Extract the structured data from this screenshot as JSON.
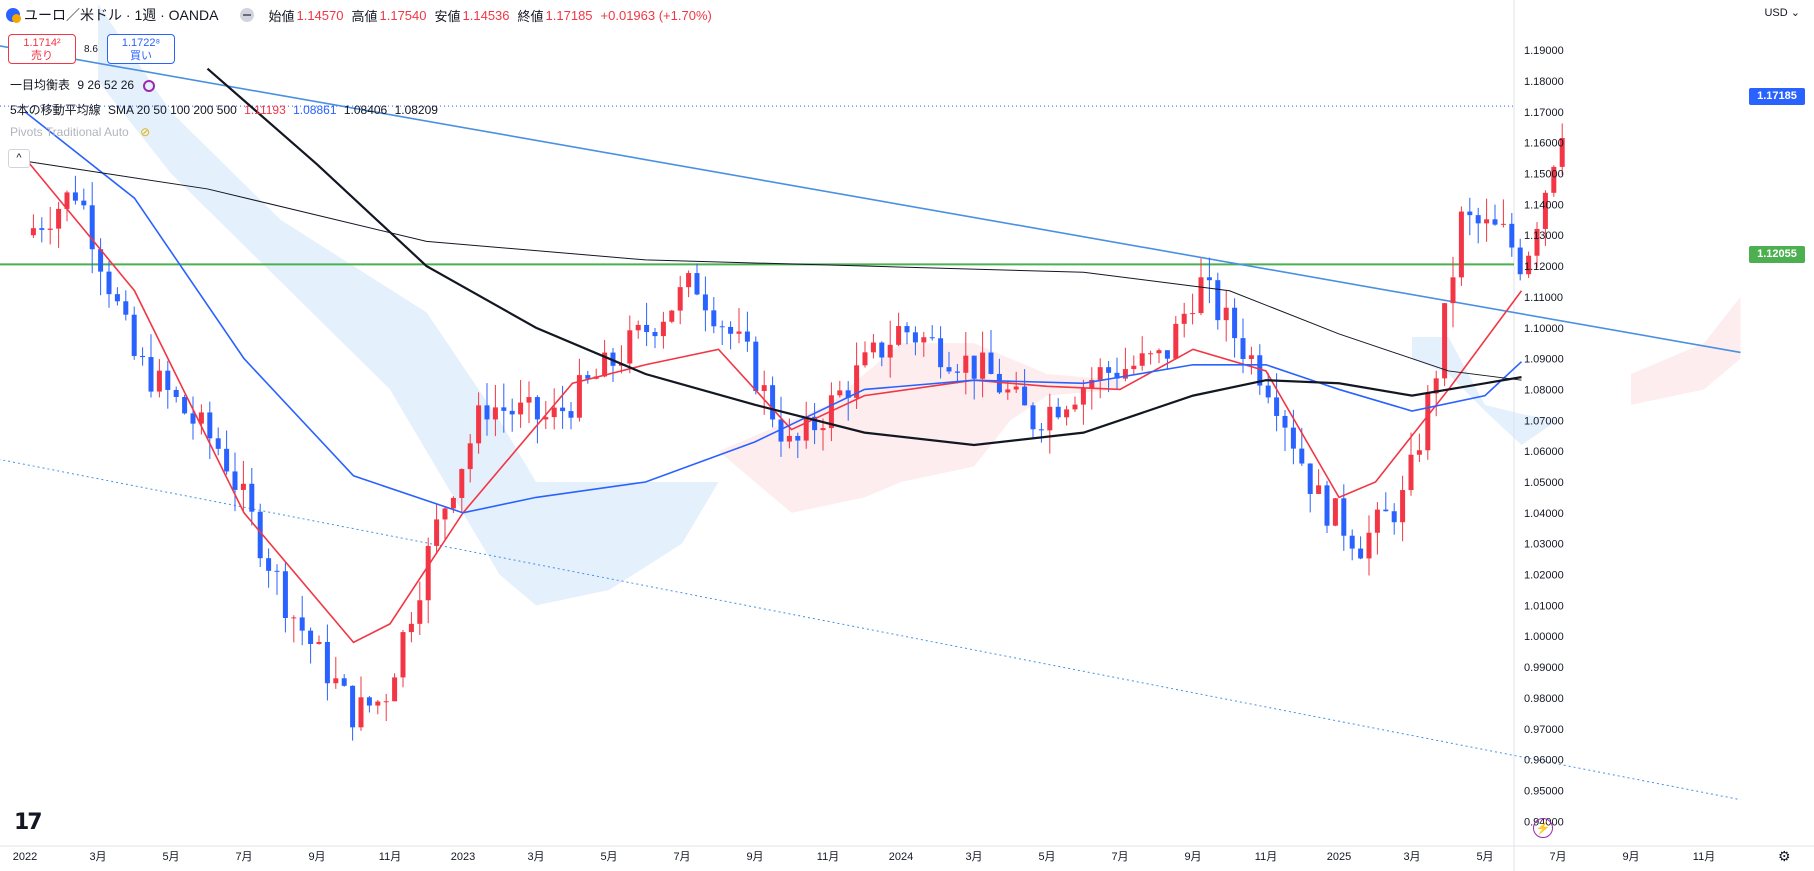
{
  "header": {
    "symbol": "ユーロ／米ドル · 1週 · OANDA",
    "open_label": "始値",
    "open": "1.14570",
    "high_label": "高値",
    "high": "1.17540",
    "low_label": "安値",
    "low": "1.14536",
    "close_label": "終値",
    "close": "1.17185",
    "change": "+0.01963 (+1.70%)"
  },
  "quote": {
    "sell_price": "1.1714²",
    "sell_label": "売り",
    "spread": "8.6",
    "buy_price": "1.1722⁸",
    "buy_label": "買い"
  },
  "indicators": {
    "ichimoku": {
      "name": "一目均衡表",
      "params": "9 26 52 26"
    },
    "sma": {
      "name": "5本の移動平均線",
      "params": "SMA 20 50 100 200 500",
      "v1": "1.11193",
      "v2": "1.08861",
      "v3": "1.08406",
      "v4": "1.08209"
    },
    "pivots": {
      "name": "Pivots Traditional Auto"
    }
  },
  "collapse_label": "^",
  "currency": "USD",
  "price_axis_labels": [
    "1.19000",
    "1.18000",
    "1.17000",
    "1.16000",
    "1.15000",
    "1.14000",
    "1.13000",
    "1.12000",
    "1.11000",
    "1.10000",
    "1.09000",
    "1.08000",
    "1.07000",
    "1.06000",
    "1.05000",
    "1.04000",
    "1.03000",
    "1.02000",
    "1.01000",
    "1.00000",
    "0.99000",
    "0.98000",
    "0.97000",
    "0.96000",
    "0.95000",
    "0.94000"
  ],
  "last_price_tag": "1.17185",
  "level_tag": "1.12055",
  "colors": {
    "up": "#f23645",
    "down": "#2962ff",
    "level": "#4caf50",
    "trend": "#4a90e2"
  },
  "chart_data": {
    "type": "candlestick",
    "title": "ユーロ／米ドル · 1週 · OANDA",
    "x_tick_labels": [
      "2022",
      "3月",
      "5月",
      "7月",
      "9月",
      "11月",
      "2023",
      "3月",
      "5月",
      "7月",
      "9月",
      "11月",
      "2024",
      "3月",
      "5月",
      "7月",
      "9月",
      "11月",
      "2025",
      "3月",
      "5月",
      "7月",
      "9月",
      "11月"
    ],
    "ylim": [
      0.9375,
      1.1975
    ],
    "horizontal_level": 1.12055,
    "last_price": 1.17185,
    "trendlines": [
      {
        "style": "solid",
        "from": [
          "2021-12",
          1.192
        ],
        "to": [
          "2025-12",
          1.092
        ]
      },
      {
        "style": "dotted",
        "from": [
          "2021-12",
          1.058
        ],
        "to": [
          "2025-12",
          0.947
        ]
      }
    ],
    "series": [
      {
        "name": "SMA 20",
        "color": "#f23645",
        "points": [
          [
            "2022-01",
            1.155
          ],
          [
            "2022-04",
            1.112
          ],
          [
            "2022-07",
            1.04
          ],
          [
            "2022-10",
            0.998
          ],
          [
            "2022-11",
            1.004
          ],
          [
            "2023-01",
            1.04
          ],
          [
            "2023-04",
            1.082
          ],
          [
            "2023-06",
            1.088
          ],
          [
            "2023-08",
            1.093
          ],
          [
            "2023-10",
            1.067
          ],
          [
            "2023-12",
            1.078
          ],
          [
            "2024-03",
            1.083
          ],
          [
            "2024-05",
            1.081
          ],
          [
            "2024-07",
            1.08
          ],
          [
            "2024-09",
            1.093
          ],
          [
            "2024-11",
            1.086
          ],
          [
            "2025-01",
            1.045
          ],
          [
            "2025-02",
            1.05
          ],
          [
            "2025-04",
            1.08
          ],
          [
            "2025-06",
            1.112
          ]
        ]
      },
      {
        "name": "SMA 50",
        "color": "#2962ff",
        "points": [
          [
            "2022-01",
            1.17
          ],
          [
            "2022-04",
            1.142
          ],
          [
            "2022-07",
            1.09
          ],
          [
            "2022-10",
            1.052
          ],
          [
            "2023-01",
            1.04
          ],
          [
            "2023-03",
            1.045
          ],
          [
            "2023-06",
            1.05
          ],
          [
            "2023-09",
            1.063
          ],
          [
            "2023-12",
            1.08
          ],
          [
            "2024-03",
            1.083
          ],
          [
            "2024-06",
            1.082
          ],
          [
            "2024-09",
            1.088
          ],
          [
            "2024-11",
            1.088
          ],
          [
            "2025-01",
            1.08
          ],
          [
            "2025-03",
            1.073
          ],
          [
            "2025-05",
            1.078
          ],
          [
            "2025-06",
            1.089
          ]
        ]
      },
      {
        "name": "SMA 100",
        "color": "#131722",
        "points": [
          [
            "2022-06",
            1.184
          ],
          [
            "2022-09",
            1.153
          ],
          [
            "2022-12",
            1.12
          ],
          [
            "2023-03",
            1.1
          ],
          [
            "2023-06",
            1.085
          ],
          [
            "2023-09",
            1.075
          ],
          [
            "2023-12",
            1.066
          ],
          [
            "2024-03",
            1.062
          ],
          [
            "2024-06",
            1.066
          ],
          [
            "2024-09",
            1.078
          ],
          [
            "2024-11",
            1.083
          ],
          [
            "2025-01",
            1.082
          ],
          [
            "2025-03",
            1.078
          ],
          [
            "2025-05",
            1.082
          ],
          [
            "2025-06",
            1.084
          ]
        ]
      },
      {
        "name": "SMA 200",
        "color": "#131722",
        "points": [
          [
            "2022-01",
            1.154
          ],
          [
            "2022-06",
            1.145
          ],
          [
            "2022-12",
            1.128
          ],
          [
            "2023-06",
            1.122
          ],
          [
            "2023-12",
            1.12
          ],
          [
            "2024-06",
            1.118
          ],
          [
            "2024-10",
            1.112
          ],
          [
            "2025-01",
            1.098
          ],
          [
            "2025-04",
            1.086
          ],
          [
            "2025-06",
            1.083
          ]
        ]
      }
    ]
  }
}
